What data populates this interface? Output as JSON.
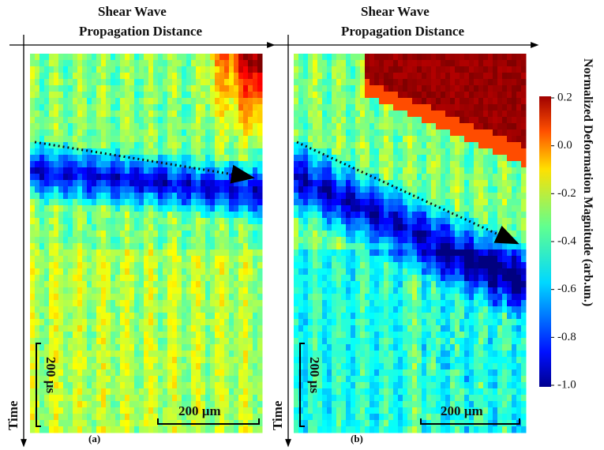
{
  "panels": [
    {
      "header_line1": "Shear Wave",
      "header_line2": "Propagation Distance",
      "time_label": "Time",
      "time_scale": "200 µs",
      "distance_scale": "200 µm",
      "caption": "(a)"
    },
    {
      "header_line1": "Shear Wave",
      "header_line2": "Propagation Distance",
      "time_label": "Time",
      "time_scale": "200 µs",
      "distance_scale": "200 µm",
      "caption": "(b)"
    }
  ],
  "colorbar": {
    "label": "Normalized Deformation Magnitude (arb.un.)",
    "lim": [
      -1.0,
      0.2
    ],
    "ticks": [
      0.2,
      {
        "value": 0,
        "label": "0.0"
      },
      -0.2,
      -0.4,
      -0.6,
      -0.8,
      {
        "value": -1.0,
        "label": "-1.0"
      }
    ]
  }
}
